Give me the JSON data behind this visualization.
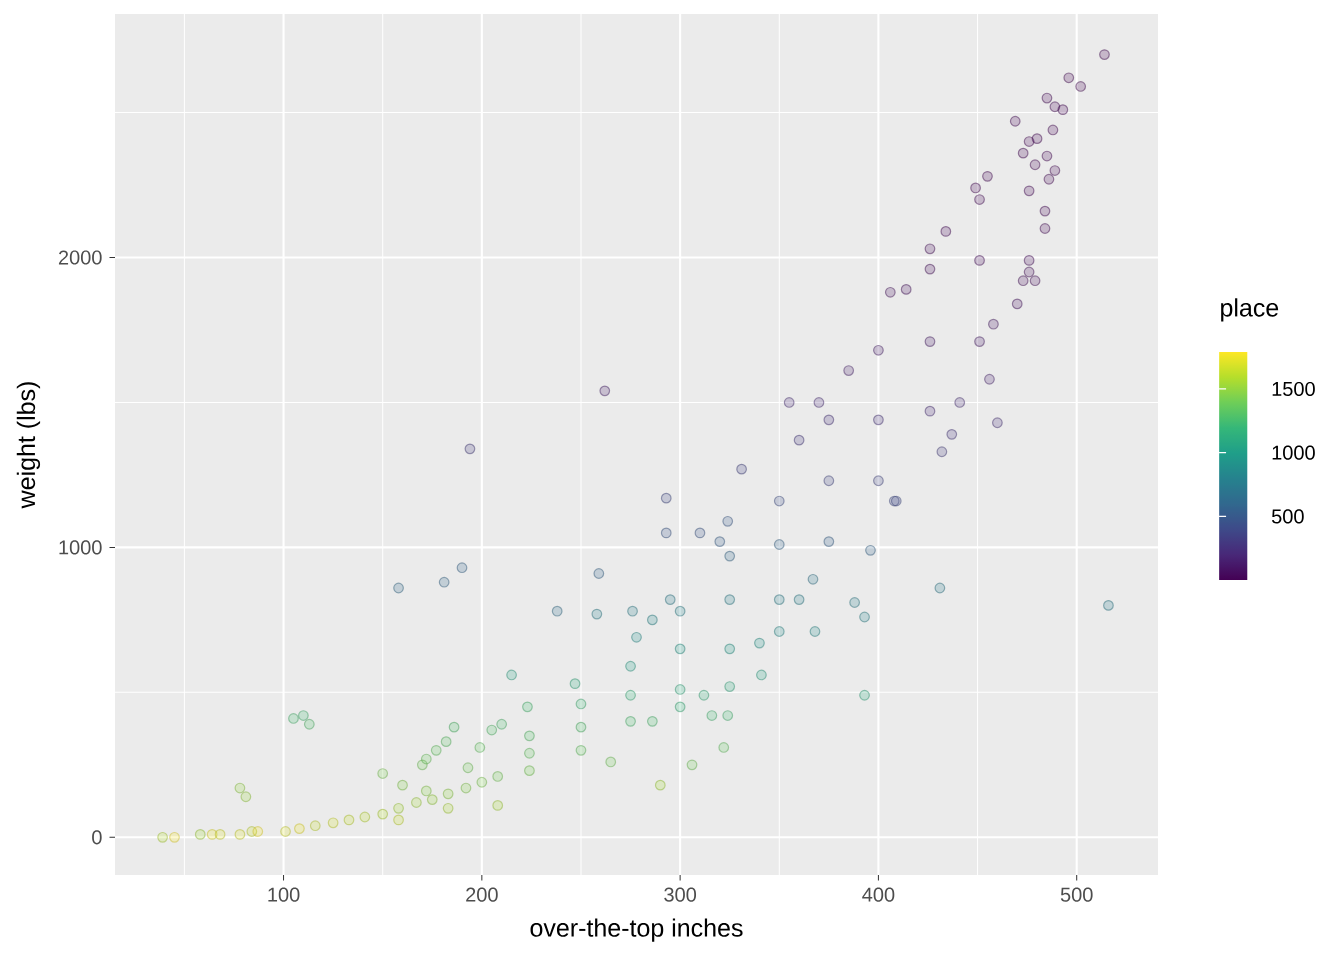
{
  "chart_data": {
    "type": "scatter",
    "xlabel": "over-the-top inches",
    "ylabel": "weight (lbs)",
    "clabel": "place",
    "x": [
      39,
      45,
      58,
      64,
      68,
      78,
      84,
      87,
      101,
      108,
      116,
      125,
      133,
      141,
      150,
      158,
      158,
      167,
      175,
      172,
      183,
      183,
      192,
      193,
      200,
      208,
      208,
      78,
      81,
      105,
      110,
      113,
      150,
      160,
      170,
      172,
      177,
      182,
      186,
      199,
      205,
      210,
      215,
      158,
      181,
      190,
      194,
      262,
      224,
      223,
      224,
      224,
      250,
      250,
      250,
      247,
      275,
      275,
      275,
      276,
      278,
      300,
      300,
      300,
      300,
      325,
      325,
      325,
      325,
      350,
      350,
      350,
      350,
      375,
      375,
      375,
      400,
      400,
      400,
      426,
      426,
      426,
      451,
      451,
      451,
      476,
      476,
      476,
      238,
      259,
      258,
      293,
      293,
      310,
      331,
      341,
      322,
      306,
      316,
      324,
      290,
      265,
      286,
      312,
      340,
      360,
      367,
      388,
      368,
      393,
      393,
      431,
      516,
      360,
      324,
      320,
      396,
      408,
      286,
      295,
      514,
      496,
      502,
      485,
      489,
      493,
      469,
      480,
      488,
      473,
      485,
      479,
      489,
      486,
      455,
      449,
      484,
      484,
      434,
      426,
      479,
      473,
      470,
      456,
      460,
      406,
      414,
      385,
      355,
      370,
      441,
      437,
      432,
      409,
      458,
      476
    ],
    "values": [
      0,
      0,
      10,
      10,
      10,
      10,
      20,
      20,
      20,
      30,
      40,
      50,
      60,
      70,
      80,
      100,
      60,
      120,
      130,
      160,
      150,
      100,
      170,
      240,
      190,
      210,
      110,
      170,
      140,
      410,
      420,
      390,
      220,
      180,
      250,
      270,
      300,
      330,
      380,
      310,
      370,
      390,
      560,
      860,
      880,
      930,
      1340,
      1540,
      290,
      450,
      350,
      230,
      380,
      460,
      300,
      530,
      490,
      590,
      400,
      780,
      690,
      650,
      780,
      510,
      450,
      820,
      970,
      650,
      520,
      1010,
      1160,
      820,
      710,
      1230,
      1440,
      1020,
      1440,
      1680,
      1230,
      1710,
      1960,
      1470,
      1990,
      2200,
      1710,
      2230,
      2400,
      1990,
      780,
      910,
      770,
      1170,
      1050,
      1050,
      1270,
      560,
      310,
      250,
      420,
      420,
      180,
      260,
      400,
      490,
      670,
      820,
      890,
      810,
      710,
      760,
      490,
      860,
      800,
      1370,
      1090,
      1020,
      990,
      1160,
      750,
      820,
      2700,
      2620,
      2590,
      2550,
      2520,
      2510,
      2470,
      2410,
      2440,
      2360,
      2350,
      2320,
      2300,
      2270,
      2280,
      2240,
      2160,
      2100,
      2090,
      2030,
      1920,
      1920,
      1840,
      1580,
      1430,
      1880,
      1890,
      1610,
      1500,
      1500,
      1500,
      1390,
      1330,
      1160,
      1770,
      1950
    ],
    "cvalues": [
      1600,
      1780,
      1550,
      1750,
      1700,
      1700,
      1650,
      1780,
      1700,
      1760,
      1650,
      1680,
      1640,
      1620,
      1600,
      1560,
      1650,
      1540,
      1520,
      1470,
      1490,
      1570,
      1460,
      1400,
      1440,
      1410,
      1560,
      1500,
      1520,
      1250,
      1240,
      1280,
      1430,
      1460,
      1400,
      1380,
      1350,
      1320,
      1280,
      1350,
      1290,
      1270,
      1050,
      620,
      600,
      560,
      300,
      150,
      1350,
      1250,
      1300,
      1420,
      1280,
      1220,
      1350,
      1120,
      1180,
      1020,
      1260,
      780,
      900,
      960,
      800,
      1120,
      1170,
      770,
      600,
      960,
      1110,
      560,
      420,
      770,
      880,
      360,
      240,
      550,
      240,
      120,
      360,
      110,
      45,
      220,
      40,
      20,
      110,
      18,
      8,
      40,
      650,
      560,
      790,
      380,
      480,
      470,
      330,
      1050,
      1350,
      1400,
      1230,
      1240,
      1550,
      1400,
      1260,
      1150,
      930,
      770,
      700,
      780,
      870,
      820,
      1100,
      730,
      750,
      280,
      500,
      540,
      570,
      400,
      830,
      760,
      1,
      2,
      3,
      4,
      5,
      6,
      7,
      9,
      8,
      10,
      11,
      12,
      13,
      14,
      15,
      16,
      22,
      25,
      27,
      35,
      50,
      51,
      70,
      160,
      230,
      60,
      58,
      150,
      220,
      218,
      221,
      270,
      300,
      400,
      90,
      45
    ],
    "xlim": [
      15,
      541
    ],
    "ylim": [
      -130,
      2840
    ],
    "xticks": [
      100,
      200,
      300,
      400,
      500
    ],
    "yticks": [
      0,
      1000,
      2000
    ],
    "clim": [
      1,
      1790
    ],
    "cticks": [
      500,
      1000,
      1500
    ],
    "grid": true,
    "marker": "circle"
  }
}
